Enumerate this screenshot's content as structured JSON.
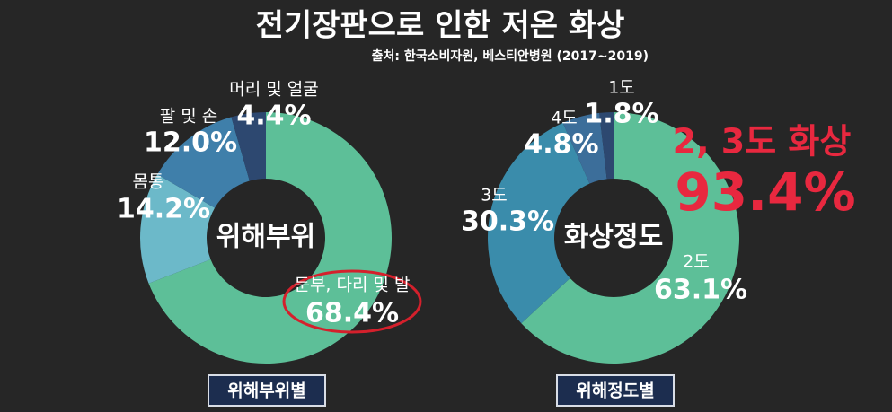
{
  "title": "전기장판으로 인한 저온 화상",
  "source": "출처: 한국소비자원, 베스티안병원 (2017~2019)",
  "annotation": {
    "text": "2, 3도 화상",
    "value_label": "93.4%"
  },
  "chart_data": [
    {
      "type": "pie",
      "center_label": "위해부위",
      "caption": "위해부위별",
      "categories": [
        "둔부, 다리 및 발",
        "몸통",
        "팔 및 손",
        "머리 및 얼굴"
      ],
      "values": [
        68.4,
        14.2,
        12.0,
        4.4
      ],
      "value_labels": [
        "68.4%",
        "14.2%",
        "12.0%",
        "4.4%"
      ],
      "colors": [
        "#5dbf98",
        "#6cb9c9",
        "#3f7faa",
        "#2d4870"
      ]
    },
    {
      "type": "pie",
      "center_label": "화상정도",
      "caption": "위해정도별",
      "categories": [
        "2도",
        "3도",
        "4도",
        "1도"
      ],
      "values": [
        63.1,
        30.3,
        4.8,
        1.8
      ],
      "value_labels": [
        "63.1%",
        "30.3%",
        "4.8%",
        "1.8%"
      ],
      "colors": [
        "#5dbf98",
        "#3a8cab",
        "#3c6e9a",
        "#2d4870"
      ]
    }
  ]
}
